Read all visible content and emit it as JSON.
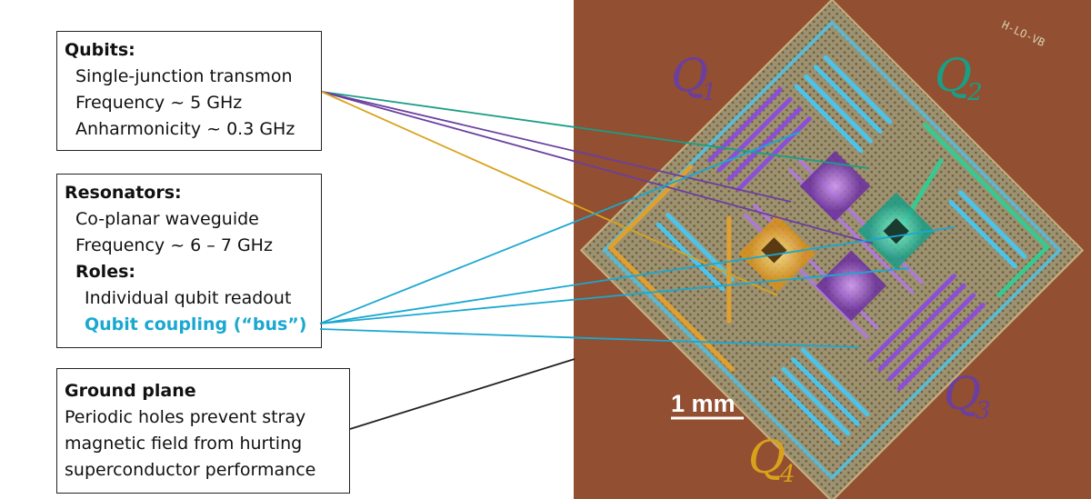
{
  "qubits_box": {
    "title": "Qubits:",
    "lines": [
      "Single-junction transmon",
      "Frequency ~ 5 GHz",
      "Anharmonicity ~ 0.3 GHz"
    ]
  },
  "resonators_box": {
    "title": "Resonators:",
    "lines": [
      "Co-planar waveguide",
      "Frequency ~ 6 – 7 GHz"
    ],
    "roles_title": "Roles:",
    "roles": [
      "Individual qubit readout",
      "Qubit coupling (“bus”)"
    ]
  },
  "ground_box": {
    "title": "Ground plane",
    "lines": [
      "Periodic holes prevent stray",
      "magnetic field from hurting",
      "superconductor performance"
    ]
  },
  "qubit_labels": [
    {
      "letter": "Q",
      "sub": "1",
      "color": "#6a3fa0"
    },
    {
      "letter": "Q",
      "sub": "2",
      "color": "#1a9e86"
    },
    {
      "letter": "Q",
      "sub": "3",
      "color": "#6a3fa0"
    },
    {
      "letter": "Q",
      "sub": "4",
      "color": "#d9a21b"
    }
  ],
  "scale_bar": {
    "label": "1 mm"
  },
  "colors": {
    "q1": "#6a3fa0",
    "q2": "#1a9e86",
    "q3": "#6a3fa0",
    "q4": "#d9a21b",
    "bus": "#1aa8d1",
    "chip_bg": "#8a4a2e",
    "ground": "#a9a27a"
  }
}
